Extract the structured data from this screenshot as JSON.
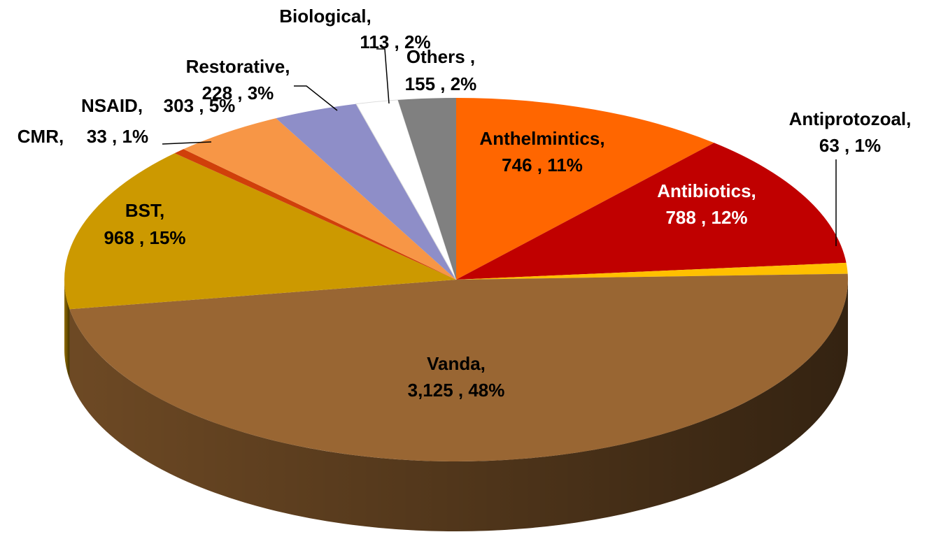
{
  "chart_data": {
    "type": "pie3d",
    "categories": [
      "Anthelmintics,",
      "Antibiotics,",
      "Antiprotozoal,",
      "Vanda,",
      "BST,",
      "CMR,",
      "NSAID,",
      "Restorative,",
      "Biological,",
      "Others ,"
    ],
    "values": [
      746,
      788,
      63,
      3125,
      968,
      33,
      303,
      228,
      113,
      155
    ],
    "value_labels": [
      "746 , 11%",
      "788 , 12%",
      "63 , 1%",
      "3,125 , 48%",
      "968 , 15%",
      "33 , 1%",
      "303 , 5%",
      "228 , 3%",
      "113 , 2%",
      "155 , 2%"
    ],
    "colors": [
      "#ff6600",
      "#c00000",
      "#ffc000",
      "#996633",
      "#cc9900",
      "#d0400a",
      "#f79646",
      "#8e8ec8",
      "#ffffff",
      "#808080"
    ]
  }
}
